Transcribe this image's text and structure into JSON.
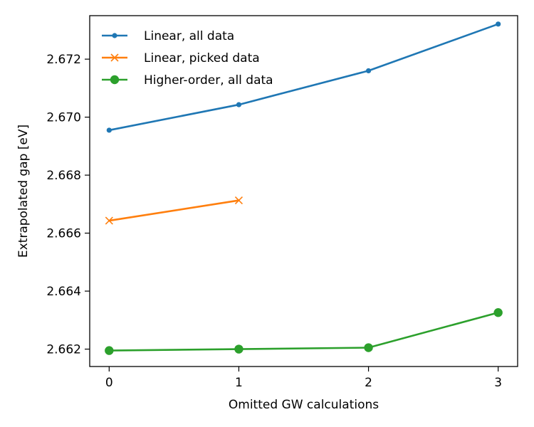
{
  "chart_data": {
    "type": "line",
    "title": "",
    "xlabel": "Omitted GW calculations",
    "ylabel": "Extrapolated gap [eV]",
    "xlim": [
      -0.15,
      3.15
    ],
    "ylim": [
      2.6614,
      2.6735
    ],
    "x_ticks": [
      0,
      1,
      2,
      3
    ],
    "y_ticks": [
      2.662,
      2.664,
      2.666,
      2.668,
      2.67,
      2.672
    ],
    "y_tick_labels": [
      "2.662",
      "2.664",
      "2.666",
      "2.668",
      "2.670",
      "2.672"
    ],
    "grid": false,
    "legend_position": "upper-left",
    "series": [
      {
        "name": "Linear, all data",
        "color": "#1f77b4",
        "marker": "dot",
        "x": [
          0,
          1,
          2,
          3
        ],
        "y": [
          2.66955,
          2.67043,
          2.6716,
          2.67321
        ]
      },
      {
        "name": "Linear, picked data",
        "color": "#ff7f0e",
        "marker": "x",
        "x": [
          0,
          1
        ],
        "y": [
          2.66643,
          2.66713
        ]
      },
      {
        "name": "Higher-order, all data",
        "color": "#2ca02c",
        "marker": "circle",
        "x": [
          0,
          1,
          2,
          3
        ],
        "y": [
          2.66195,
          2.662,
          2.66205,
          2.66326
        ]
      }
    ]
  }
}
